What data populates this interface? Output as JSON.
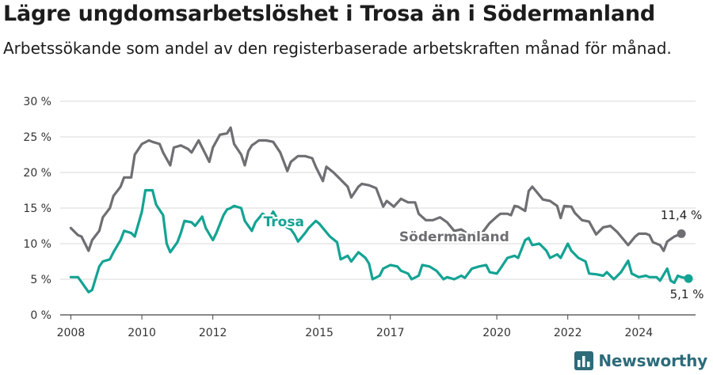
{
  "chart_data": {
    "type": "line",
    "title": "Lägre ungdomsarbetslöshet i Trosa än i Södermanland",
    "subtitle": "Arbetssökande som andel av den registerbaserade arbetskraften månad för månad.",
    "xlabel": "",
    "ylabel": "",
    "xlim": [
      2007.7,
      2025.6
    ],
    "ylim": [
      0,
      30
    ],
    "x_ticks": [
      2008,
      2010,
      2012,
      2015,
      2017,
      2020,
      2022,
      2024
    ],
    "y_ticks": [
      0,
      5,
      10,
      15,
      20,
      25,
      30
    ],
    "y_tick_labels": [
      "0 %",
      "5 %",
      "10 %",
      "15 %",
      "20 %",
      "25 %",
      "30 %"
    ],
    "grid": true,
    "series": [
      {
        "name": "Södermanland",
        "color": "#6e6e73",
        "end_label": "11,4 %",
        "points": [
          [
            2008.0,
            12.2
          ],
          [
            2008.2,
            11.2
          ],
          [
            2008.3,
            11.0
          ],
          [
            2008.5,
            9.0
          ],
          [
            2008.6,
            10.5
          ],
          [
            2008.8,
            11.8
          ],
          [
            2008.9,
            13.7
          ],
          [
            2009.1,
            15.0
          ],
          [
            2009.2,
            16.7
          ],
          [
            2009.4,
            18.0
          ],
          [
            2009.5,
            19.3
          ],
          [
            2009.7,
            19.3
          ],
          [
            2009.8,
            22.5
          ],
          [
            2010.0,
            24.0
          ],
          [
            2010.2,
            24.5
          ],
          [
            2010.3,
            24.3
          ],
          [
            2010.5,
            24.0
          ],
          [
            2010.6,
            22.8
          ],
          [
            2010.8,
            21.0
          ],
          [
            2010.9,
            23.5
          ],
          [
            2011.1,
            23.8
          ],
          [
            2011.3,
            23.3
          ],
          [
            2011.4,
            22.8
          ],
          [
            2011.6,
            24.5
          ],
          [
            2011.7,
            23.5
          ],
          [
            2011.9,
            21.5
          ],
          [
            2012.0,
            23.5
          ],
          [
            2012.2,
            25.3
          ],
          [
            2012.4,
            25.5
          ],
          [
            2012.5,
            26.3
          ],
          [
            2012.6,
            24.0
          ],
          [
            2012.8,
            22.5
          ],
          [
            2012.9,
            21.0
          ],
          [
            2013.0,
            23.0
          ],
          [
            2013.1,
            23.8
          ],
          [
            2013.3,
            24.5
          ],
          [
            2013.5,
            24.5
          ],
          [
            2013.7,
            24.3
          ],
          [
            2013.9,
            22.8
          ],
          [
            2014.1,
            20.2
          ],
          [
            2014.2,
            21.5
          ],
          [
            2014.4,
            22.3
          ],
          [
            2014.6,
            22.3
          ],
          [
            2014.8,
            22.0
          ],
          [
            2014.9,
            20.8
          ],
          [
            2015.1,
            18.8
          ],
          [
            2015.2,
            20.8
          ],
          [
            2015.4,
            20.0
          ],
          [
            2015.6,
            19.0
          ],
          [
            2015.8,
            18.0
          ],
          [
            2015.9,
            16.5
          ],
          [
            2016.1,
            18.0
          ],
          [
            2016.2,
            18.4
          ],
          [
            2016.4,
            18.2
          ],
          [
            2016.6,
            17.8
          ],
          [
            2016.8,
            15.2
          ],
          [
            2016.9,
            16.0
          ],
          [
            2017.1,
            15.2
          ],
          [
            2017.3,
            16.3
          ],
          [
            2017.5,
            15.8
          ],
          [
            2017.7,
            15.8
          ],
          [
            2017.8,
            14.2
          ],
          [
            2018.0,
            13.3
          ],
          [
            2018.2,
            13.3
          ],
          [
            2018.4,
            13.7
          ],
          [
            2018.6,
            13.0
          ],
          [
            2018.8,
            11.8
          ],
          [
            2019.0,
            12.0
          ],
          [
            2019.2,
            11.3
          ],
          [
            2019.4,
            11.5
          ],
          [
            2019.6,
            11.6
          ],
          [
            2019.8,
            12.9
          ],
          [
            2020.0,
            13.8
          ],
          [
            2020.1,
            14.2
          ],
          [
            2020.3,
            14.2
          ],
          [
            2020.4,
            14.0
          ],
          [
            2020.5,
            15.3
          ],
          [
            2020.6,
            15.2
          ],
          [
            2020.8,
            14.6
          ],
          [
            2020.9,
            17.4
          ],
          [
            2021.0,
            18.0
          ],
          [
            2021.1,
            17.4
          ],
          [
            2021.3,
            16.2
          ],
          [
            2021.5,
            16.0
          ],
          [
            2021.7,
            15.3
          ],
          [
            2021.8,
            13.6
          ],
          [
            2021.9,
            15.3
          ],
          [
            2022.1,
            15.2
          ],
          [
            2022.2,
            14.3
          ],
          [
            2022.4,
            13.3
          ],
          [
            2022.6,
            13.1
          ],
          [
            2022.8,
            11.3
          ],
          [
            2022.9,
            11.8
          ],
          [
            2023.0,
            12.3
          ],
          [
            2023.2,
            12.5
          ],
          [
            2023.4,
            11.6
          ],
          [
            2023.6,
            10.4
          ],
          [
            2023.7,
            9.8
          ],
          [
            2023.9,
            11.0
          ],
          [
            2024.0,
            11.4
          ],
          [
            2024.2,
            11.4
          ],
          [
            2024.3,
            11.2
          ],
          [
            2024.4,
            10.2
          ],
          [
            2024.6,
            9.8
          ],
          [
            2024.7,
            9.0
          ],
          [
            2024.8,
            10.3
          ],
          [
            2025.0,
            11.0
          ],
          [
            2025.2,
            11.4
          ]
        ]
      },
      {
        "name": "Trosa",
        "color": "#13a393",
        "end_label": "5,1 %",
        "points": [
          [
            2008.0,
            5.3
          ],
          [
            2008.2,
            5.3
          ],
          [
            2008.3,
            4.6
          ],
          [
            2008.5,
            3.2
          ],
          [
            2008.6,
            3.5
          ],
          [
            2008.8,
            6.8
          ],
          [
            2008.9,
            7.5
          ],
          [
            2009.1,
            7.8
          ],
          [
            2009.2,
            8.8
          ],
          [
            2009.4,
            10.5
          ],
          [
            2009.5,
            11.8
          ],
          [
            2009.7,
            11.5
          ],
          [
            2009.8,
            11.0
          ],
          [
            2010.0,
            14.5
          ],
          [
            2010.1,
            17.5
          ],
          [
            2010.3,
            17.5
          ],
          [
            2010.4,
            15.5
          ],
          [
            2010.6,
            14.0
          ],
          [
            2010.7,
            10.0
          ],
          [
            2010.8,
            8.8
          ],
          [
            2011.0,
            10.2
          ],
          [
            2011.1,
            11.5
          ],
          [
            2011.2,
            13.2
          ],
          [
            2011.4,
            13.0
          ],
          [
            2011.5,
            12.5
          ],
          [
            2011.7,
            13.8
          ],
          [
            2011.8,
            12.2
          ],
          [
            2012.0,
            10.5
          ],
          [
            2012.1,
            11.5
          ],
          [
            2012.3,
            14.0
          ],
          [
            2012.4,
            14.8
          ],
          [
            2012.5,
            15.0
          ],
          [
            2012.6,
            15.3
          ],
          [
            2012.8,
            15.0
          ],
          [
            2012.9,
            13.2
          ],
          [
            2013.1,
            11.8
          ],
          [
            2013.2,
            13.0
          ],
          [
            2013.4,
            14.2
          ],
          [
            2013.6,
            13.5
          ],
          [
            2013.7,
            14.5
          ],
          [
            2013.9,
            12.8
          ],
          [
            2014.0,
            12.5
          ],
          [
            2014.2,
            12.0
          ],
          [
            2014.3,
            11.3
          ],
          [
            2014.4,
            10.3
          ],
          [
            2014.6,
            11.5
          ],
          [
            2014.7,
            12.2
          ],
          [
            2014.9,
            13.2
          ],
          [
            2015.0,
            12.8
          ],
          [
            2015.2,
            11.6
          ],
          [
            2015.3,
            11.0
          ],
          [
            2015.5,
            10.2
          ],
          [
            2015.6,
            7.8
          ],
          [
            2015.8,
            8.3
          ],
          [
            2015.9,
            7.5
          ],
          [
            2016.1,
            8.8
          ],
          [
            2016.3,
            8.0
          ],
          [
            2016.4,
            7.2
          ],
          [
            2016.5,
            5.0
          ],
          [
            2016.7,
            5.5
          ],
          [
            2016.8,
            6.5
          ],
          [
            2017.0,
            7.0
          ],
          [
            2017.2,
            6.8
          ],
          [
            2017.3,
            6.2
          ],
          [
            2017.5,
            5.8
          ],
          [
            2017.6,
            5.0
          ],
          [
            2017.8,
            5.5
          ],
          [
            2017.9,
            7.0
          ],
          [
            2018.1,
            6.8
          ],
          [
            2018.3,
            6.2
          ],
          [
            2018.5,
            5.0
          ],
          [
            2018.6,
            5.3
          ],
          [
            2018.8,
            5.0
          ],
          [
            2019.0,
            5.5
          ],
          [
            2019.1,
            5.2
          ],
          [
            2019.3,
            6.5
          ],
          [
            2019.5,
            6.8
          ],
          [
            2019.7,
            7.0
          ],
          [
            2019.8,
            6.0
          ],
          [
            2020.0,
            5.8
          ],
          [
            2020.1,
            6.5
          ],
          [
            2020.3,
            8.0
          ],
          [
            2020.5,
            8.3
          ],
          [
            2020.6,
            8.0
          ],
          [
            2020.8,
            10.5
          ],
          [
            2020.9,
            10.8
          ],
          [
            2021.0,
            9.8
          ],
          [
            2021.2,
            10.0
          ],
          [
            2021.4,
            9.0
          ],
          [
            2021.5,
            8.0
          ],
          [
            2021.7,
            8.5
          ],
          [
            2021.8,
            8.0
          ],
          [
            2022.0,
            10.0
          ],
          [
            2022.1,
            9.0
          ],
          [
            2022.3,
            8.0
          ],
          [
            2022.5,
            7.5
          ],
          [
            2022.6,
            5.8
          ],
          [
            2022.8,
            5.7
          ],
          [
            2023.0,
            5.5
          ],
          [
            2023.1,
            6.0
          ],
          [
            2023.3,
            5.0
          ],
          [
            2023.5,
            6.0
          ],
          [
            2023.7,
            7.6
          ],
          [
            2023.8,
            5.8
          ],
          [
            2024.0,
            5.3
          ],
          [
            2024.2,
            5.5
          ],
          [
            2024.3,
            5.3
          ],
          [
            2024.5,
            5.3
          ],
          [
            2024.6,
            4.8
          ],
          [
            2024.8,
            6.5
          ],
          [
            2024.9,
            4.8
          ],
          [
            2025.0,
            4.5
          ],
          [
            2025.1,
            5.5
          ],
          [
            2025.2,
            5.3
          ],
          [
            2025.4,
            5.1
          ]
        ]
      }
    ]
  },
  "brand": {
    "name": "Newsworthy",
    "color": "#2d6b7a"
  }
}
